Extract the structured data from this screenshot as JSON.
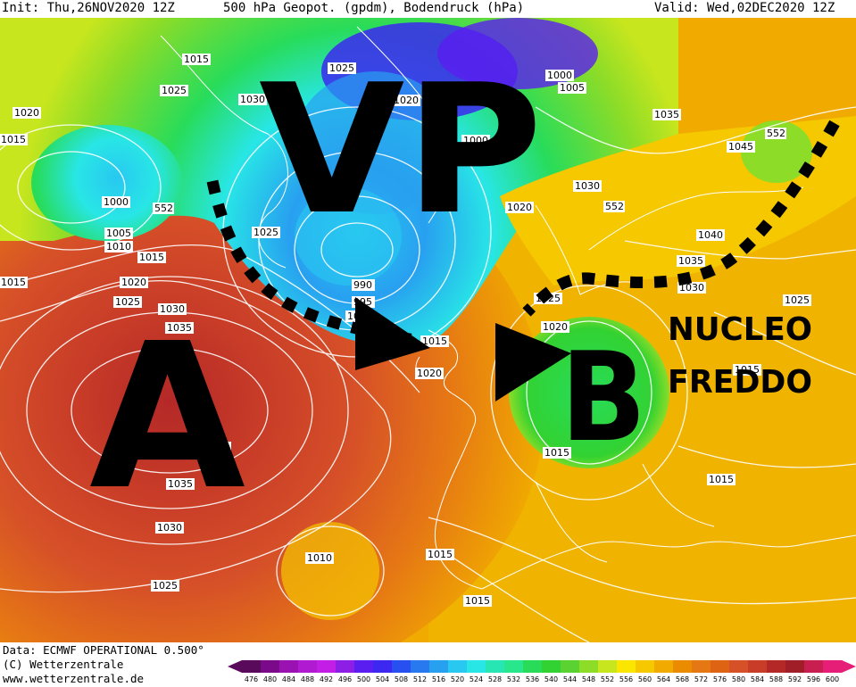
{
  "header": {
    "init": "Init: Thu,26NOV2020 12Z",
    "title": "500 hPa Geopot. (gpdm), Bodendruck (hPa)",
    "valid": "Valid: Wed,02DEC2020 12Z"
  },
  "annotations": {
    "vp": "VP",
    "a": "A",
    "b": "B",
    "nucleo": "NUCLEO",
    "freddo": "FREDDO"
  },
  "pressure_labels": [
    "1015",
    "1025",
    "1030",
    "1025",
    "1020",
    "1015",
    "1000",
    "1005",
    "1010",
    "1015",
    "552",
    "1015",
    "1020",
    "1025",
    "1030",
    "1035",
    "1035",
    "1030",
    "1025",
    "1025",
    "990",
    "995",
    "1000",
    "1000",
    "1020",
    "1015",
    "1020",
    "1000",
    "1005",
    "1035",
    "552",
    "1045",
    "1030",
    "552",
    "1020",
    "1040",
    "1035",
    "1030",
    "1025",
    "1025",
    "1020",
    "1015",
    "1015",
    "1015",
    "1010",
    "1015",
    "1015",
    "1040"
  ],
  "colorbar": {
    "values": [
      "476",
      "480",
      "484",
      "488",
      "492",
      "496",
      "500",
      "504",
      "508",
      "512",
      "516",
      "520",
      "524",
      "528",
      "532",
      "536",
      "540",
      "544",
      "548",
      "552",
      "556",
      "560",
      "564",
      "568",
      "572",
      "576",
      "580",
      "584",
      "588",
      "592",
      "596",
      "600"
    ],
    "colors": [
      "#5a0a5a",
      "#7a0a8a",
      "#9a12b2",
      "#b01ad0",
      "#c21ee6",
      "#8c1ee6",
      "#5a1ef0",
      "#3c28f0",
      "#2850f0",
      "#2878f0",
      "#28a0f0",
      "#28c8f0",
      "#28e6e6",
      "#28e6b4",
      "#28e68c",
      "#28dc5a",
      "#32d232",
      "#5ad232",
      "#8cdc28",
      "#c8e61e",
      "#fae600",
      "#f5c800",
      "#f0aa00",
      "#eb8c00",
      "#e67814",
      "#de6414",
      "#d65028",
      "#c83c28",
      "#b42828",
      "#a01e28",
      "#c81e50",
      "#e61e78"
    ]
  },
  "footer": {
    "data": "Data: ECMWF OPERATIONAL 0.500°",
    "copyright": "(C) Wetterzentrale",
    "url": "www.wetterzentrale.de"
  }
}
